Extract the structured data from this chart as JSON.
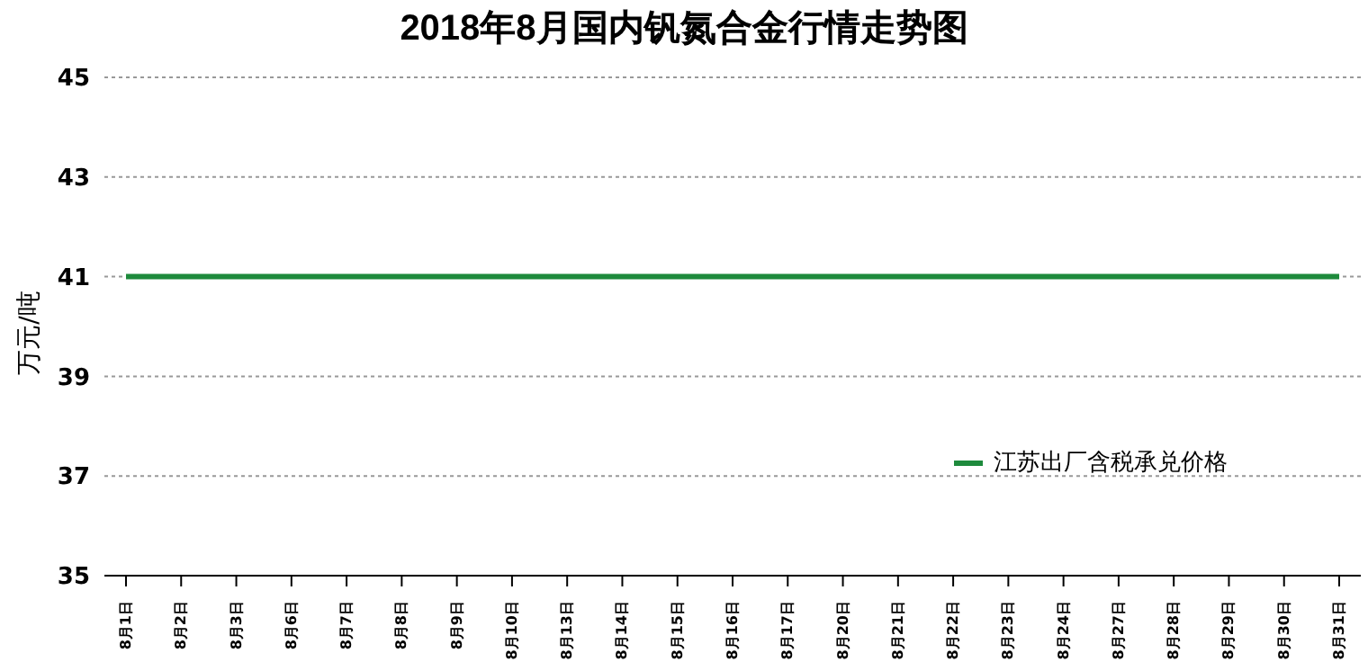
{
  "chart_data": {
    "type": "line",
    "title": "2018年8月国内钒氮合金行情走势图",
    "ylabel": "万元/吨",
    "categories": [
      "8月1日",
      "8月2日",
      "8月3日",
      "8月6日",
      "8月7日",
      "8月8日",
      "8月9日",
      "8月10日",
      "8月13日",
      "8月14日",
      "8月15日",
      "8月16日",
      "8月17日",
      "8月20日",
      "8月21日",
      "8月22日",
      "8月23日",
      "8月24日",
      "8月27日",
      "8月28日",
      "8月29日",
      "8月30日",
      "8月31日"
    ],
    "series": [
      {
        "name": "江苏出厂含税承兑价格",
        "color": "#1e8a3c",
        "values": [
          41,
          41,
          41,
          41,
          41,
          41,
          41,
          41,
          41,
          41,
          41,
          41,
          41,
          41,
          41,
          41,
          41,
          41,
          41,
          41,
          41,
          41,
          41
        ]
      }
    ],
    "ylim": [
      35,
      45
    ],
    "yticks": [
      35,
      37,
      39,
      41,
      43,
      45
    ],
    "grid": "y",
    "legend": "right",
    "marker": "none",
    "line_style": "solid"
  }
}
